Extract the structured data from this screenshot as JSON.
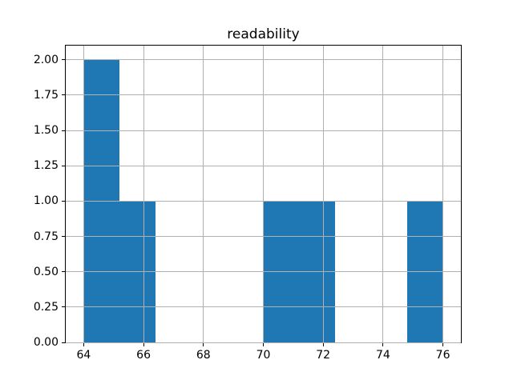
{
  "chart_data": {
    "type": "bar",
    "subtype": "histogram",
    "title": "readability",
    "xlabel": "",
    "ylabel": "",
    "bin_edges": [
      64.0,
      65.2,
      66.4,
      67.6,
      68.8,
      70.0,
      71.2,
      72.4,
      73.6,
      74.8,
      76.0
    ],
    "counts": [
      2,
      1,
      0,
      0,
      0,
      1,
      1,
      0,
      0,
      1
    ],
    "xlim": [
      63.4,
      76.6
    ],
    "ylim": [
      0,
      2.1
    ],
    "x_ticks": [
      64,
      66,
      68,
      70,
      72,
      74,
      76
    ],
    "x_tick_labels": [
      "64",
      "66",
      "68",
      "70",
      "72",
      "74",
      "76"
    ],
    "y_ticks": [
      0.0,
      0.25,
      0.5,
      0.75,
      1.0,
      1.25,
      1.5,
      1.75,
      2.0
    ],
    "y_tick_labels": [
      "0.00",
      "0.25",
      "0.50",
      "0.75",
      "1.00",
      "1.25",
      "1.50",
      "1.75",
      "2.00"
    ],
    "grid": true,
    "legend": false,
    "bar_color": "#1f77b4",
    "grid_color": "#b0b0b0",
    "spine_color": "#000000",
    "tick_color": "#000000",
    "background_color": "#ffffff"
  }
}
